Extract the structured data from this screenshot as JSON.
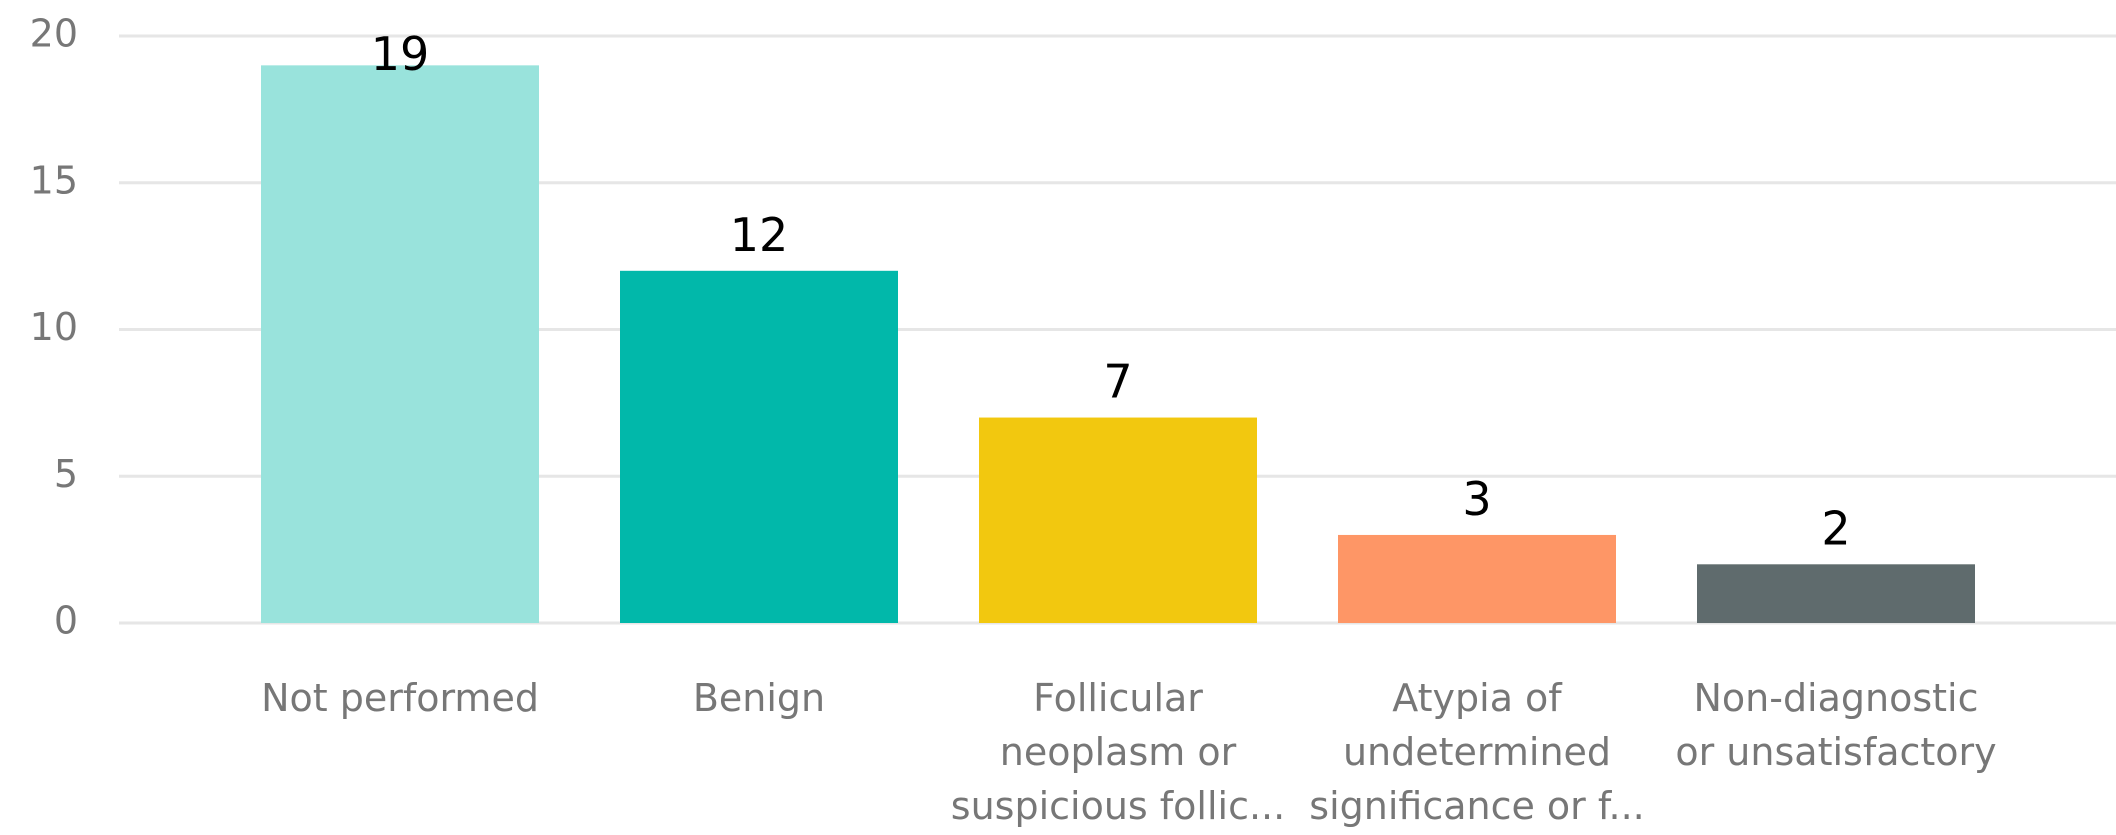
{
  "chart_data": {
    "type": "bar",
    "categories": [
      "Not performed",
      "Benign",
      "Follicular\nneoplasm or\nsuspicious follic...",
      "Atypia of\nundetermined\nsignificance or f...",
      "Non-diagnostic\nor unsatisfactory"
    ],
    "values": [
      19,
      12,
      7,
      3,
      2
    ],
    "colors": [
      "#99e3dc",
      "#01b8aa",
      "#f2c80f",
      "#fe9666",
      "#5f6b6d"
    ],
    "ylim": [
      0,
      20
    ],
    "yticks": [
      0,
      5,
      10,
      15,
      20
    ],
    "grid": true
  }
}
